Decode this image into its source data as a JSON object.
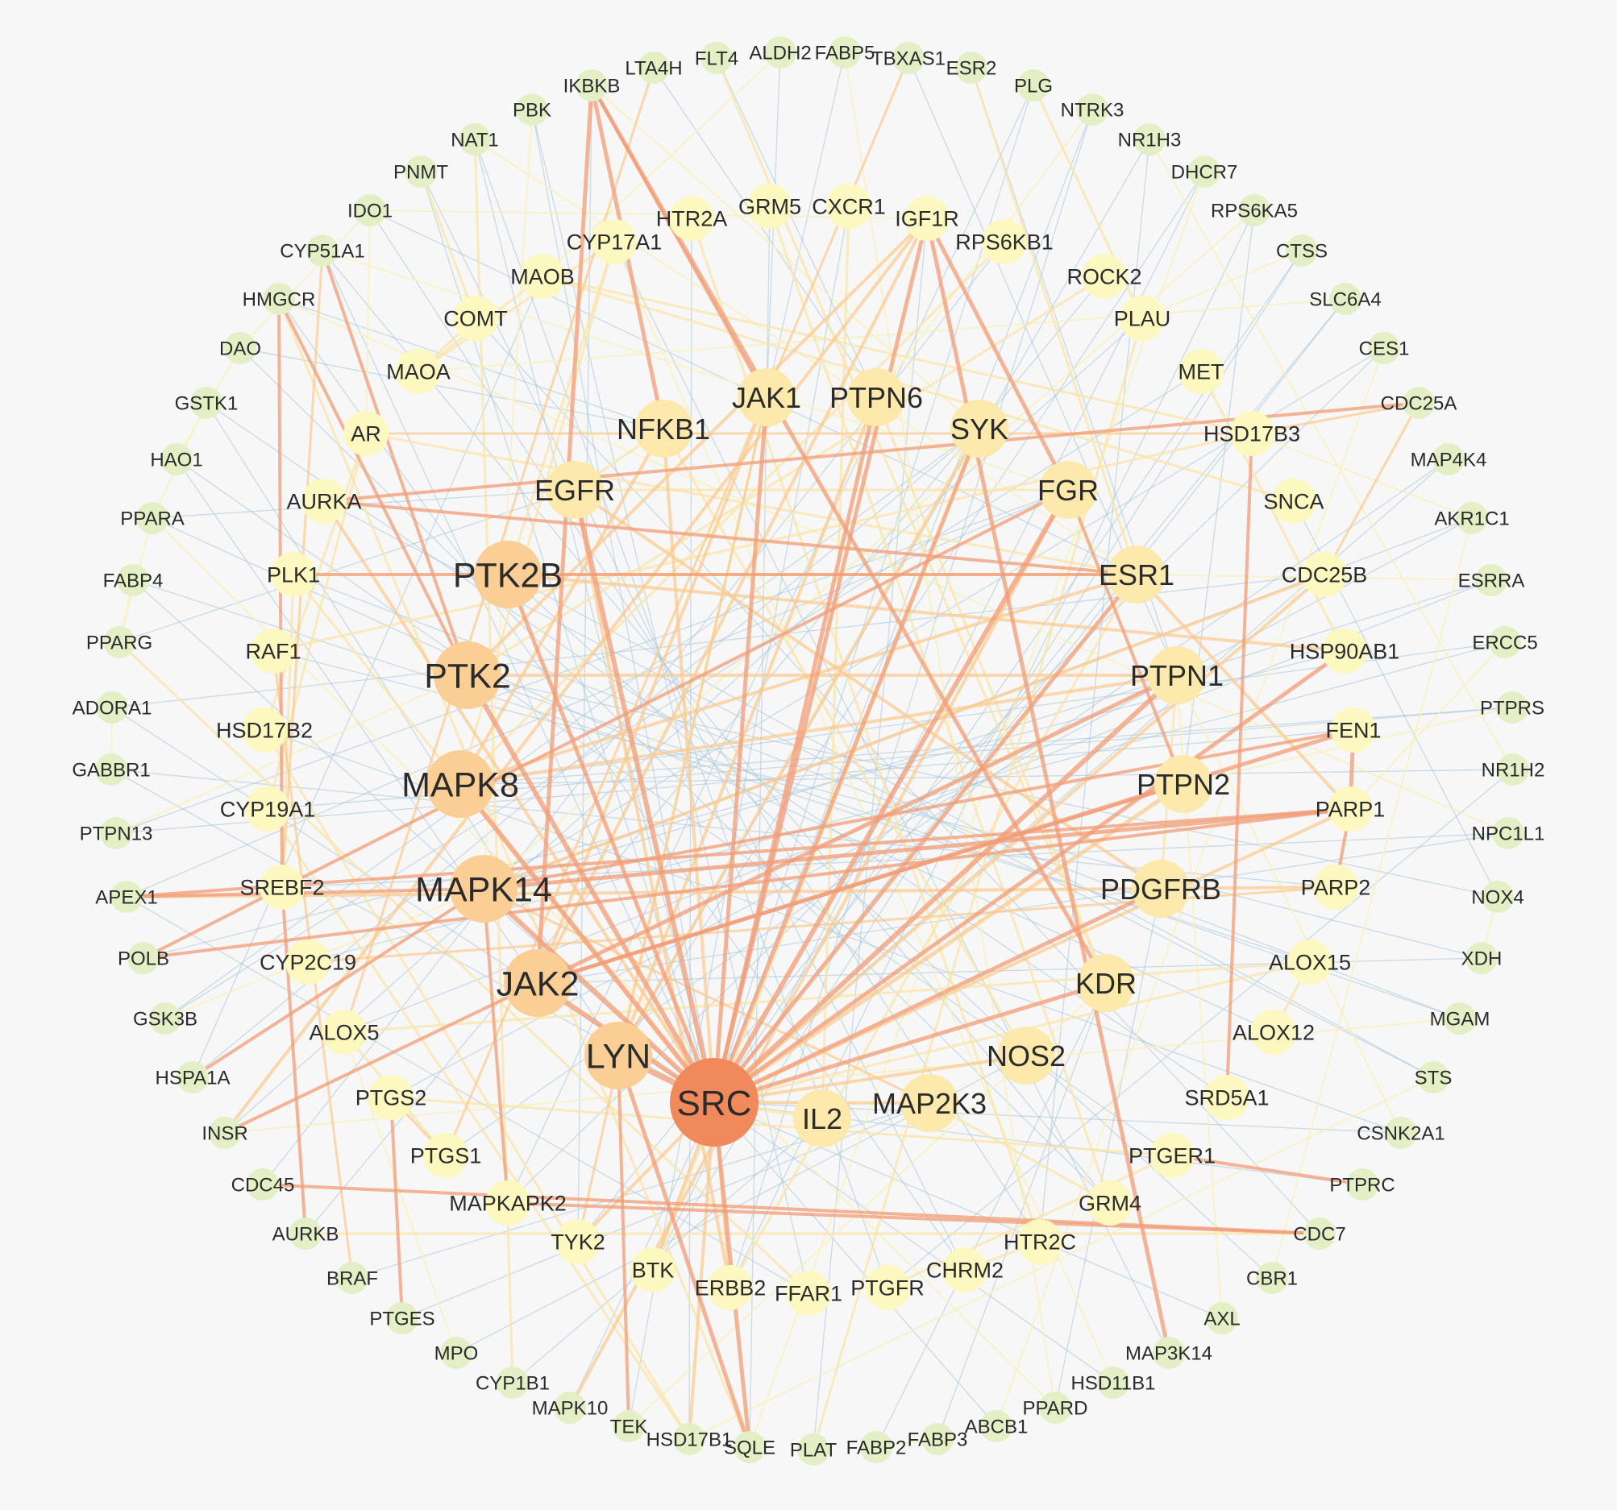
{
  "tiers": [
    {
      "size": 10,
      "color": "#d3e6cf",
      "font": 23
    },
    {
      "size": 20,
      "color": "#e4efc6",
      "font": 24
    },
    {
      "size": 28,
      "color": "#fdf7c0",
      "font": 27
    },
    {
      "size": 36,
      "color": "#fde9ac",
      "font": 36
    },
    {
      "size": 42,
      "color": "#fbce95",
      "font": 43
    },
    {
      "size": 55,
      "color": "#f08a5c",
      "font": 44
    }
  ],
  "edge_colors": {
    "strong": "#f29c76",
    "medium": "#fbc98d",
    "weak": "#f9e4a8",
    "faint": "#f8f0bd",
    "blue": "#a8c7d9"
  },
  "nodes": [
    {
      "id": "SRC",
      "t": 5
    },
    {
      "id": "LYN",
      "t": 4
    },
    {
      "id": "IL2",
      "t": 3
    },
    {
      "id": "MAP2K3",
      "t": 3
    },
    {
      "id": "NOS2",
      "t": 3
    },
    {
      "id": "JAK2",
      "t": 4
    },
    {
      "id": "KDR",
      "t": 3
    },
    {
      "id": "MAPK14",
      "t": 4
    },
    {
      "id": "PDGFRB",
      "t": 3
    },
    {
      "id": "MAPK8",
      "t": 4
    },
    {
      "id": "PTPN2",
      "t": 3
    },
    {
      "id": "PTK2",
      "t": 4
    },
    {
      "id": "PTPN1",
      "t": 3
    },
    {
      "id": "PTK2B",
      "t": 4
    },
    {
      "id": "ESR1",
      "t": 3
    },
    {
      "id": "EGFR",
      "t": 3
    },
    {
      "id": "FGR",
      "t": 3
    },
    {
      "id": "NFKB1",
      "t": 3
    },
    {
      "id": "SYK",
      "t": 3
    },
    {
      "id": "JAK1",
      "t": 3
    },
    {
      "id": "PTPN6",
      "t": 3
    },
    {
      "id": "CYP17A1",
      "t": 2
    },
    {
      "id": "HTR2A",
      "t": 2
    },
    {
      "id": "GRM5",
      "t": 2
    },
    {
      "id": "CXCR1",
      "t": 2
    },
    {
      "id": "IGF1R",
      "t": 2
    },
    {
      "id": "RPS6KB1",
      "t": 2
    },
    {
      "id": "MAOB",
      "t": 2
    },
    {
      "id": "ROCK2",
      "t": 2
    },
    {
      "id": "COMT",
      "t": 2
    },
    {
      "id": "PLAU",
      "t": 2
    },
    {
      "id": "MAOA",
      "t": 2
    },
    {
      "id": "MET",
      "t": 2
    },
    {
      "id": "AR",
      "t": 2
    },
    {
      "id": "HSD17B3",
      "t": 2
    },
    {
      "id": "AURKA",
      "t": 2
    },
    {
      "id": "SNCA",
      "t": 2
    },
    {
      "id": "PLK1",
      "t": 2
    },
    {
      "id": "CDC25B",
      "t": 2
    },
    {
      "id": "RAF1",
      "t": 2
    },
    {
      "id": "HSP90AB1",
      "t": 2
    },
    {
      "id": "HSD17B2",
      "t": 2
    },
    {
      "id": "FEN1",
      "t": 2
    },
    {
      "id": "CYP19A1",
      "t": 2
    },
    {
      "id": "PARP1",
      "t": 2
    },
    {
      "id": "SREBF2",
      "t": 2
    },
    {
      "id": "PARP2",
      "t": 2
    },
    {
      "id": "CYP2C19",
      "t": 2
    },
    {
      "id": "ALOX15",
      "t": 2
    },
    {
      "id": "ALOX5",
      "t": 2
    },
    {
      "id": "ALOX12",
      "t": 2
    },
    {
      "id": "PTGS2",
      "t": 2
    },
    {
      "id": "SRD5A1",
      "t": 2
    },
    {
      "id": "PTGS1",
      "t": 2
    },
    {
      "id": "PTGER1",
      "t": 2
    },
    {
      "id": "MAPKAPK2",
      "t": 2
    },
    {
      "id": "GRM4",
      "t": 2
    },
    {
      "id": "TYK2",
      "t": 2
    },
    {
      "id": "HTR2C",
      "t": 2
    },
    {
      "id": "BTK",
      "t": 2
    },
    {
      "id": "CHRM2",
      "t": 2
    },
    {
      "id": "ERBB2",
      "t": 2
    },
    {
      "id": "FFAR1",
      "t": 2
    },
    {
      "id": "PTGFR",
      "t": 2
    },
    {
      "id": "LTA4H",
      "t": 1
    },
    {
      "id": "FLT4",
      "t": 1
    },
    {
      "id": "ALDH2",
      "t": 1
    },
    {
      "id": "FABP5",
      "t": 1
    },
    {
      "id": "TBXAS1",
      "t": 1
    },
    {
      "id": "ESR2",
      "t": 1
    },
    {
      "id": "IKBKB",
      "t": 1
    },
    {
      "id": "PLG",
      "t": 1
    },
    {
      "id": "PBK",
      "t": 1
    },
    {
      "id": "NTRK3",
      "t": 1
    },
    {
      "id": "NAT1",
      "t": 1
    },
    {
      "id": "NR1H3",
      "t": 1
    },
    {
      "id": "PNMT",
      "t": 1
    },
    {
      "id": "DHCR7",
      "t": 1
    },
    {
      "id": "IDO1",
      "t": 1
    },
    {
      "id": "RPS6KA5",
      "t": 1
    },
    {
      "id": "CYP51A1",
      "t": 1
    },
    {
      "id": "CTSS",
      "t": 1
    },
    {
      "id": "HMGCR",
      "t": 1
    },
    {
      "id": "SLC6A4",
      "t": 1
    },
    {
      "id": "DAO",
      "t": 1
    },
    {
      "id": "CES1",
      "t": 1
    },
    {
      "id": "GSTK1",
      "t": 1
    },
    {
      "id": "CDC25A",
      "t": 1
    },
    {
      "id": "HAO1",
      "t": 1
    },
    {
      "id": "MAP4K4",
      "t": 1
    },
    {
      "id": "PPARA",
      "t": 1
    },
    {
      "id": "AKR1C1",
      "t": 1
    },
    {
      "id": "FABP4",
      "t": 1
    },
    {
      "id": "ESRRA",
      "t": 1
    },
    {
      "id": "PPARG",
      "t": 1
    },
    {
      "id": "ERCC5",
      "t": 1
    },
    {
      "id": "ADORA1",
      "t": 1
    },
    {
      "id": "PTPRS",
      "t": 1
    },
    {
      "id": "GABBR1",
      "t": 1
    },
    {
      "id": "NR1H2",
      "t": 1
    },
    {
      "id": "PTPN13",
      "t": 1
    },
    {
      "id": "NPC1L1",
      "t": 1
    },
    {
      "id": "APEX1",
      "t": 1
    },
    {
      "id": "NOX4",
      "t": 1
    },
    {
      "id": "POLB",
      "t": 1
    },
    {
      "id": "XDH",
      "t": 1
    },
    {
      "id": "GSK3B",
      "t": 1
    },
    {
      "id": "MGAM",
      "t": 1
    },
    {
      "id": "HSPA1A",
      "t": 1
    },
    {
      "id": "STS",
      "t": 1
    },
    {
      "id": "INSR",
      "t": 1
    },
    {
      "id": "CSNK2A1",
      "t": 1
    },
    {
      "id": "CDC45",
      "t": 1
    },
    {
      "id": "PTPRC",
      "t": 1
    },
    {
      "id": "AURKB",
      "t": 1
    },
    {
      "id": "CDC7",
      "t": 1
    },
    {
      "id": "BRAF",
      "t": 1
    },
    {
      "id": "CBR1",
      "t": 1
    },
    {
      "id": "PTGES",
      "t": 1
    },
    {
      "id": "AXL",
      "t": 1
    },
    {
      "id": "MPO",
      "t": 1
    },
    {
      "id": "MAP3K14",
      "t": 1
    },
    {
      "id": "CYP1B1",
      "t": 1
    },
    {
      "id": "HSD11B1",
      "t": 1
    },
    {
      "id": "MAPK10",
      "t": 1
    },
    {
      "id": "PPARD",
      "t": 1
    },
    {
      "id": "TEK",
      "t": 1
    },
    {
      "id": "ABCB1",
      "t": 1
    },
    {
      "id": "HSD17B1",
      "t": 1
    },
    {
      "id": "FABP3",
      "t": 1
    },
    {
      "id": "SQLE",
      "t": 1
    },
    {
      "id": "FABP2",
      "t": 1
    },
    {
      "id": "PLAT",
      "t": 1
    }
  ]
}
